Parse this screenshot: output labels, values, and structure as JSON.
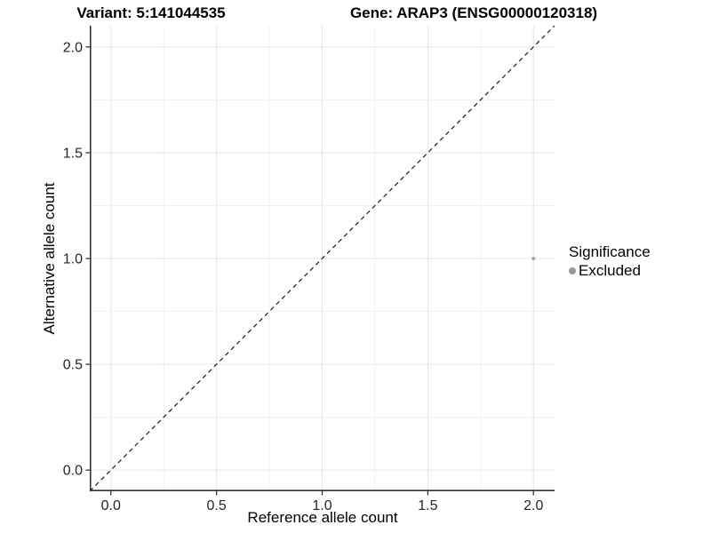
{
  "chart_data": {
    "type": "scatter",
    "title_left": "Variant: 5:141044535",
    "title_right": "Gene: ARAP3 (ENSG00000120318)",
    "xlabel": "Reference allele count",
    "ylabel": "Alternative allele count",
    "xlim": [
      -0.1,
      2.1
    ],
    "ylim": [
      -0.1,
      2.1
    ],
    "x_ticks": [
      0.0,
      0.5,
      1.0,
      1.5,
      2.0
    ],
    "y_ticks": [
      0.0,
      0.5,
      1.0,
      1.5,
      2.0
    ],
    "x_tick_labels": [
      "0.0",
      "0.5",
      "1.0",
      "1.5",
      "2.0"
    ],
    "y_tick_labels": [
      "0.0",
      "0.5",
      "1.0",
      "1.5",
      "2.0"
    ],
    "minor_grid_step": 0.25,
    "grid": true,
    "points": [
      {
        "x": 2.0,
        "y": 1.0,
        "series": "Excluded"
      }
    ],
    "reference_line": {
      "kind": "identity",
      "style": "dashed",
      "from": [
        -0.1,
        -0.1
      ],
      "to": [
        2.1,
        2.1
      ]
    },
    "legend": {
      "title": "Significance",
      "position": "right",
      "items": [
        {
          "label": "Excluded",
          "marker": "circle",
          "color": "#999999"
        }
      ]
    }
  },
  "colors": {
    "background": "#ffffff",
    "grid_major": "#e5e5e5",
    "grid_minor": "#f1f1f1",
    "axis_line": "#333333",
    "tick_mark": "#333333",
    "tick_label": "#262626",
    "title_text": "#000000",
    "dashed_line": "#1a1a1a",
    "point": "#a8a8a8",
    "legend_point": "#999999"
  }
}
